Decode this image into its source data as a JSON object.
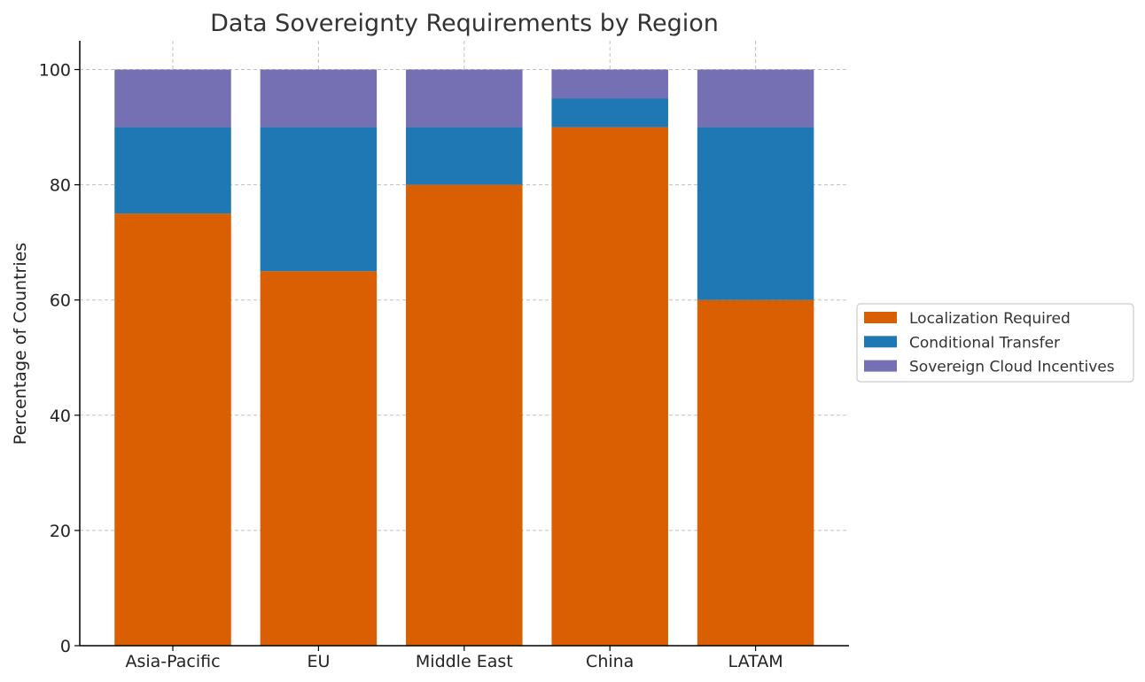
{
  "chart_data": {
    "type": "bar",
    "stacked": true,
    "title": "Data Sovereignty Requirements by Region",
    "xlabel": "",
    "ylabel": "Percentage of Countries",
    "categories": [
      "Asia-Pacific",
      "EU",
      "Middle East",
      "China",
      "LATAM"
    ],
    "series": [
      {
        "name": "Localization Required",
        "color": "#d95f02",
        "values": [
          75,
          65,
          80,
          90,
          60
        ]
      },
      {
        "name": "Conditional Transfer",
        "color": "#1f78b4",
        "values": [
          15,
          25,
          10,
          5,
          30
        ]
      },
      {
        "name": "Sovereign Cloud Incentives",
        "color": "#7570b3",
        "values": [
          10,
          10,
          10,
          5,
          10
        ]
      }
    ],
    "ylim": [
      0,
      105
    ],
    "yticks": [
      0,
      20,
      40,
      60,
      80,
      100
    ],
    "grid": true,
    "legend_position": "right"
  }
}
